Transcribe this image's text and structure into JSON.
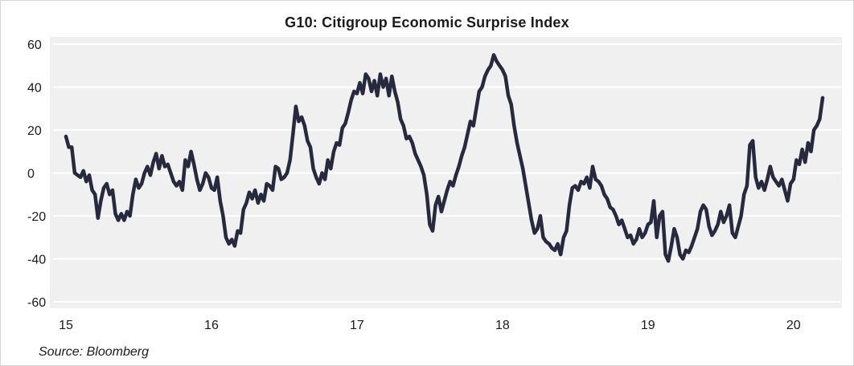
{
  "title": "G10: Citigroup Economic Surprise Index",
  "source": "Source:  Bloomberg",
  "colors": {
    "line": "#272a3e",
    "grid": "#ffffff",
    "plot_bg": "#f0f0f0"
  },
  "chart_data": {
    "type": "line",
    "title": "G10: Citigroup Economic Surprise Index",
    "xlabel": "",
    "ylabel": "",
    "xlim": [
      15.0,
      20.25
    ],
    "ylim": [
      -60,
      60
    ],
    "yticks": [
      60,
      40,
      20,
      0,
      -20,
      -40,
      -60
    ],
    "xticks": [
      15,
      16,
      17,
      18,
      19,
      20
    ],
    "grid": "horizontal",
    "series": [
      {
        "name": "",
        "points": [
          [
            15.0,
            17
          ],
          [
            15.02,
            12
          ],
          [
            15.04,
            12
          ],
          [
            15.06,
            0
          ],
          [
            15.08,
            -1
          ],
          [
            15.1,
            -2
          ],
          [
            15.12,
            1
          ],
          [
            15.14,
            -4
          ],
          [
            15.16,
            -1
          ],
          [
            15.18,
            -8
          ],
          [
            15.2,
            -10
          ],
          [
            15.22,
            -21
          ],
          [
            15.24,
            -13
          ],
          [
            15.26,
            -7
          ],
          [
            15.28,
            -5
          ],
          [
            15.3,
            -10
          ],
          [
            15.32,
            -8
          ],
          [
            15.34,
            -19
          ],
          [
            15.36,
            -22
          ],
          [
            15.38,
            -19
          ],
          [
            15.4,
            -22
          ],
          [
            15.42,
            -18
          ],
          [
            15.44,
            -20
          ],
          [
            15.46,
            -10
          ],
          [
            15.48,
            -3
          ],
          [
            15.5,
            -7
          ],
          [
            15.52,
            -5
          ],
          [
            15.54,
            0
          ],
          [
            15.56,
            3
          ],
          [
            15.58,
            -1
          ],
          [
            15.6,
            5
          ],
          [
            15.62,
            9
          ],
          [
            15.64,
            2
          ],
          [
            15.66,
            8
          ],
          [
            15.68,
            3
          ],
          [
            15.7,
            4
          ],
          [
            15.72,
            0
          ],
          [
            15.74,
            -4
          ],
          [
            15.76,
            -6
          ],
          [
            15.78,
            -4
          ],
          [
            15.8,
            -8
          ],
          [
            15.82,
            6
          ],
          [
            15.84,
            3
          ],
          [
            15.86,
            10
          ],
          [
            15.88,
            4
          ],
          [
            15.9,
            -3
          ],
          [
            15.92,
            -8
          ],
          [
            15.94,
            -5
          ],
          [
            15.96,
            0
          ],
          [
            15.98,
            -2
          ],
          [
            16.0,
            -7
          ],
          [
            16.02,
            -8
          ],
          [
            16.04,
            -2
          ],
          [
            16.06,
            -13
          ],
          [
            16.08,
            -20
          ],
          [
            16.1,
            -30
          ],
          [
            16.12,
            -33
          ],
          [
            16.14,
            -31
          ],
          [
            16.16,
            -34
          ],
          [
            16.18,
            -27
          ],
          [
            16.2,
            -28
          ],
          [
            16.22,
            -17
          ],
          [
            16.24,
            -14
          ],
          [
            16.26,
            -9
          ],
          [
            16.28,
            -12
          ],
          [
            16.3,
            -8
          ],
          [
            16.32,
            -14
          ],
          [
            16.34,
            -10
          ],
          [
            16.36,
            -13
          ],
          [
            16.38,
            -5
          ],
          [
            16.4,
            -6
          ],
          [
            16.42,
            -8
          ],
          [
            16.44,
            3
          ],
          [
            16.46,
            2
          ],
          [
            16.48,
            -3
          ],
          [
            16.5,
            -2
          ],
          [
            16.52,
            0
          ],
          [
            16.54,
            6
          ],
          [
            16.56,
            18
          ],
          [
            16.58,
            31
          ],
          [
            16.6,
            24
          ],
          [
            16.62,
            26
          ],
          [
            16.64,
            22
          ],
          [
            16.66,
            15
          ],
          [
            16.68,
            12
          ],
          [
            16.7,
            2
          ],
          [
            16.72,
            -2
          ],
          [
            16.74,
            -5
          ],
          [
            16.76,
            0
          ],
          [
            16.78,
            -3
          ],
          [
            16.8,
            6
          ],
          [
            16.82,
            2
          ],
          [
            16.84,
            10
          ],
          [
            16.86,
            14
          ],
          [
            16.88,
            13
          ],
          [
            16.9,
            21
          ],
          [
            16.92,
            23
          ],
          [
            16.94,
            28
          ],
          [
            16.96,
            34
          ],
          [
            16.98,
            38
          ],
          [
            17.0,
            37
          ],
          [
            17.02,
            42
          ],
          [
            17.04,
            37
          ],
          [
            17.06,
            46
          ],
          [
            17.08,
            44
          ],
          [
            17.1,
            38
          ],
          [
            17.12,
            43
          ],
          [
            17.14,
            36
          ],
          [
            17.16,
            46
          ],
          [
            17.18,
            40
          ],
          [
            17.2,
            44
          ],
          [
            17.22,
            36
          ],
          [
            17.24,
            45
          ],
          [
            17.26,
            38
          ],
          [
            17.28,
            33
          ],
          [
            17.3,
            25
          ],
          [
            17.32,
            22
          ],
          [
            17.34,
            16
          ],
          [
            17.36,
            17
          ],
          [
            17.38,
            14
          ],
          [
            17.4,
            9
          ],
          [
            17.42,
            6
          ],
          [
            17.44,
            3
          ],
          [
            17.46,
            -1
          ],
          [
            17.48,
            -10
          ],
          [
            17.5,
            -24
          ],
          [
            17.52,
            -27
          ],
          [
            17.54,
            -15
          ],
          [
            17.56,
            -11
          ],
          [
            17.58,
            -18
          ],
          [
            17.6,
            -13
          ],
          [
            17.62,
            -8
          ],
          [
            17.64,
            -4
          ],
          [
            17.66,
            -6
          ],
          [
            17.68,
            -1
          ],
          [
            17.7,
            3
          ],
          [
            17.72,
            8
          ],
          [
            17.74,
            12
          ],
          [
            17.76,
            18
          ],
          [
            17.78,
            24
          ],
          [
            17.8,
            22
          ],
          [
            17.82,
            30
          ],
          [
            17.84,
            38
          ],
          [
            17.86,
            40
          ],
          [
            17.88,
            45
          ],
          [
            17.9,
            48
          ],
          [
            17.92,
            50
          ],
          [
            17.94,
            55
          ],
          [
            17.96,
            52
          ],
          [
            17.98,
            50
          ],
          [
            18.0,
            48
          ],
          [
            18.02,
            45
          ],
          [
            18.04,
            36
          ],
          [
            18.06,
            32
          ],
          [
            18.08,
            22
          ],
          [
            18.1,
            14
          ],
          [
            18.12,
            8
          ],
          [
            18.14,
            2
          ],
          [
            18.16,
            -6
          ],
          [
            18.18,
            -14
          ],
          [
            18.2,
            -22
          ],
          [
            18.22,
            -28
          ],
          [
            18.24,
            -26
          ],
          [
            18.26,
            -20
          ],
          [
            18.28,
            -30
          ],
          [
            18.3,
            -32
          ],
          [
            18.32,
            -33
          ],
          [
            18.34,
            -35
          ],
          [
            18.36,
            -36
          ],
          [
            18.38,
            -33
          ],
          [
            18.4,
            -38
          ],
          [
            18.42,
            -30
          ],
          [
            18.44,
            -27
          ],
          [
            18.46,
            -15
          ],
          [
            18.48,
            -7
          ],
          [
            18.5,
            -6
          ],
          [
            18.52,
            -8
          ],
          [
            18.54,
            -4
          ],
          [
            18.56,
            -5
          ],
          [
            18.58,
            -2
          ],
          [
            18.6,
            -7
          ],
          [
            18.62,
            3
          ],
          [
            18.64,
            -3
          ],
          [
            18.66,
            -4
          ],
          [
            18.68,
            -6
          ],
          [
            18.7,
            -10
          ],
          [
            18.72,
            -12
          ],
          [
            18.74,
            -16
          ],
          [
            18.76,
            -17
          ],
          [
            18.78,
            -20
          ],
          [
            18.8,
            -24
          ],
          [
            18.82,
            -22
          ],
          [
            18.84,
            -26
          ],
          [
            18.86,
            -30
          ],
          [
            18.88,
            -29
          ],
          [
            18.9,
            -33
          ],
          [
            18.92,
            -31
          ],
          [
            18.94,
            -26
          ],
          [
            18.96,
            -30
          ],
          [
            18.98,
            -28
          ],
          [
            19.0,
            -24
          ],
          [
            19.02,
            -23
          ],
          [
            19.04,
            -13
          ],
          [
            19.06,
            -30
          ],
          [
            19.08,
            -20
          ],
          [
            19.1,
            -18
          ],
          [
            19.12,
            -38
          ],
          [
            19.14,
            -41
          ],
          [
            19.16,
            -34
          ],
          [
            19.18,
            -26
          ],
          [
            19.2,
            -30
          ],
          [
            19.22,
            -38
          ],
          [
            19.24,
            -40
          ],
          [
            19.26,
            -36
          ],
          [
            19.28,
            -37
          ],
          [
            19.3,
            -34
          ],
          [
            19.32,
            -30
          ],
          [
            19.34,
            -26
          ],
          [
            19.36,
            -18
          ],
          [
            19.38,
            -15
          ],
          [
            19.4,
            -17
          ],
          [
            19.42,
            -25
          ],
          [
            19.44,
            -29
          ],
          [
            19.46,
            -27
          ],
          [
            19.48,
            -24
          ],
          [
            19.5,
            -18
          ],
          [
            19.52,
            -23
          ],
          [
            19.54,
            -20
          ],
          [
            19.56,
            -15
          ],
          [
            19.58,
            -28
          ],
          [
            19.6,
            -30
          ],
          [
            19.62,
            -25
          ],
          [
            19.64,
            -20
          ],
          [
            19.66,
            -10
          ],
          [
            19.68,
            -6
          ],
          [
            19.7,
            13
          ],
          [
            19.72,
            15
          ],
          [
            19.74,
            -2
          ],
          [
            19.76,
            -7
          ],
          [
            19.78,
            -4
          ],
          [
            19.8,
            -8
          ],
          [
            19.82,
            -3
          ],
          [
            19.84,
            3
          ],
          [
            19.86,
            -2
          ],
          [
            19.88,
            -4
          ],
          [
            19.9,
            -6
          ],
          [
            19.92,
            -3
          ],
          [
            19.94,
            -8
          ],
          [
            19.96,
            -13
          ],
          [
            19.98,
            -5
          ],
          [
            20.0,
            -3
          ],
          [
            20.02,
            6
          ],
          [
            20.04,
            4
          ],
          [
            20.06,
            11
          ],
          [
            20.08,
            5
          ],
          [
            20.1,
            14
          ],
          [
            20.12,
            10
          ],
          [
            20.14,
            20
          ],
          [
            20.16,
            22
          ],
          [
            20.18,
            25
          ],
          [
            20.2,
            35
          ]
        ]
      }
    ]
  }
}
